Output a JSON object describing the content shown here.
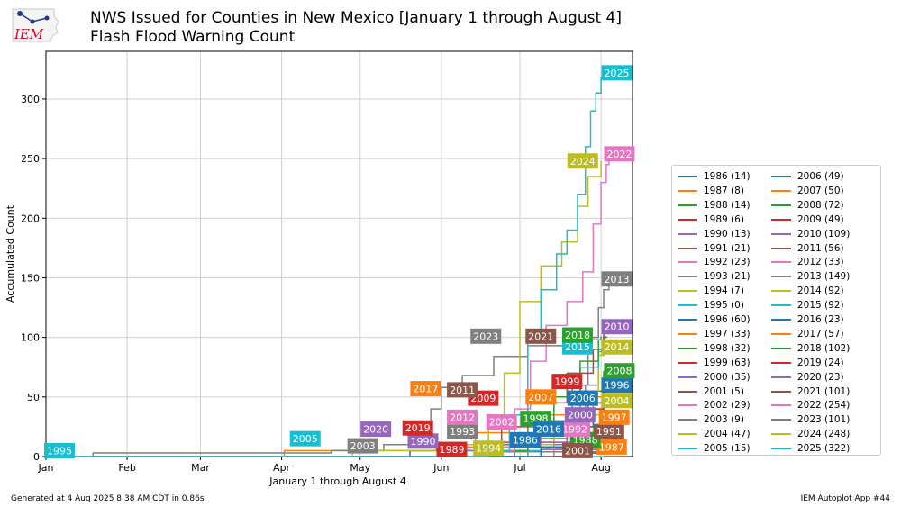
{
  "header": {
    "title_line1": "NWS Issued for Counties in New Mexico [January 1 through August 4]",
    "title_line2": "Flash Flood Warning Count",
    "logo_text": "IEM"
  },
  "footer": {
    "generated": "Generated at 4 Aug 2025 8:38 AM CDT in 0.86s",
    "app": "IEM Autoplot App #44"
  },
  "chart_data": {
    "type": "line",
    "title": "NWS Issued for Counties in New Mexico [January 1 through August 4] Flash Flood Warning Count",
    "xlabel": "January 1 through August 4",
    "ylabel": "Accumulated Count",
    "xlim": [
      1,
      225
    ],
    "ylim": [
      0,
      340
    ],
    "x_ticks": [
      {
        "day": 1,
        "label": "Jan"
      },
      {
        "day": 32,
        "label": "Feb"
      },
      {
        "day": 60,
        "label": "Mar"
      },
      {
        "day": 91,
        "label": "Apr"
      },
      {
        "day": 121,
        "label": "May"
      },
      {
        "day": 152,
        "label": "Jun"
      },
      {
        "day": 182,
        "label": "Jul"
      },
      {
        "day": 213,
        "label": "Aug"
      }
    ],
    "y_ticks": [
      0,
      50,
      100,
      150,
      200,
      250,
      300
    ],
    "grid": true,
    "legend_location": "right",
    "series": [
      {
        "year": "1986",
        "total": 14,
        "color": "#1f77b4",
        "label_day": 184,
        "label_y": 14
      },
      {
        "year": "1987",
        "total": 8,
        "color": "#ff7f0e",
        "label_day": 217,
        "label_y": 8
      },
      {
        "year": "1988",
        "total": 14,
        "color": "#2ca02c",
        "label_day": 207,
        "label_y": 14
      },
      {
        "year": "1989",
        "total": 6,
        "color": "#d62728",
        "label_day": 156,
        "label_y": 6
      },
      {
        "year": "1990",
        "total": 13,
        "color": "#9467bd",
        "label_day": 145,
        "label_y": 13
      },
      {
        "year": "1991",
        "total": 21,
        "color": "#8c564b",
        "label_day": 216,
        "label_y": 21
      },
      {
        "year": "1992",
        "total": 23,
        "color": "#e377c2",
        "label_day": 203,
        "label_y": 23
      },
      {
        "year": "1993",
        "total": 21,
        "color": "#7f7f7f",
        "label_day": 160,
        "label_y": 21
      },
      {
        "year": "1994",
        "total": 7,
        "color": "#bcbd22",
        "label_day": 170,
        "label_y": 7
      },
      {
        "year": "1995",
        "total": 0,
        "color": "#17becf",
        "label_day": 6,
        "label_y": 0
      },
      {
        "year": "1996",
        "total": 60,
        "color": "#1f77b4",
        "label_day": 219,
        "label_y": 60
      },
      {
        "year": "1997",
        "total": 33,
        "color": "#ff7f0e",
        "label_day": 218,
        "label_y": 33
      },
      {
        "year": "1998",
        "total": 32,
        "color": "#2ca02c",
        "label_day": 188,
        "label_y": 32
      },
      {
        "year": "1999",
        "total": 63,
        "color": "#d62728",
        "label_day": 200,
        "label_y": 63
      },
      {
        "year": "2000",
        "total": 35,
        "color": "#9467bd",
        "label_day": 205,
        "label_y": 35
      },
      {
        "year": "2001",
        "total": 5,
        "color": "#8c564b",
        "label_day": 204,
        "label_y": 5
      },
      {
        "year": "2002",
        "total": 29,
        "color": "#e377c2",
        "label_day": 175,
        "label_y": 29
      },
      {
        "year": "2003",
        "total": 9,
        "color": "#7f7f7f",
        "label_day": 122,
        "label_y": 9
      },
      {
        "year": "2004",
        "total": 47,
        "color": "#bcbd22",
        "label_day": 219,
        "label_y": 47
      },
      {
        "year": "2005",
        "total": 15,
        "color": "#17becf",
        "label_day": 100,
        "label_y": 15
      },
      {
        "year": "2006",
        "total": 49,
        "color": "#1f77b4",
        "label_day": 206,
        "label_y": 49
      },
      {
        "year": "2007",
        "total": 50,
        "color": "#ff7f0e",
        "label_day": 190,
        "label_y": 50
      },
      {
        "year": "2008",
        "total": 72,
        "color": "#2ca02c",
        "label_day": 220,
        "label_y": 72
      },
      {
        "year": "2009",
        "total": 49,
        "color": "#d62728",
        "label_day": 168,
        "label_y": 49
      },
      {
        "year": "2010",
        "total": 109,
        "color": "#9467bd",
        "label_day": 219,
        "label_y": 109
      },
      {
        "year": "2011",
        "total": 56,
        "color": "#8c564b",
        "label_day": 160,
        "label_y": 56
      },
      {
        "year": "2012",
        "total": 33,
        "color": "#e377c2",
        "label_day": 160,
        "label_y": 33
      },
      {
        "year": "2013",
        "total": 149,
        "color": "#7f7f7f",
        "label_day": 219,
        "label_y": 149
      },
      {
        "year": "2014",
        "total": 92,
        "color": "#bcbd22",
        "label_day": 219,
        "label_y": 92
      },
      {
        "year": "2015",
        "total": 92,
        "color": "#17becf",
        "label_day": 204,
        "label_y": 92
      },
      {
        "year": "2016",
        "total": 23,
        "color": "#1f77b4",
        "label_day": 193,
        "label_y": 23
      },
      {
        "year": "2017",
        "total": 57,
        "color": "#ff7f0e",
        "label_day": 146,
        "label_y": 57
      },
      {
        "year": "2018",
        "total": 102,
        "color": "#2ca02c",
        "label_day": 204,
        "label_y": 102
      },
      {
        "year": "2019",
        "total": 24,
        "color": "#d62728",
        "label_day": 143,
        "label_y": 24
      },
      {
        "year": "2020",
        "total": 23,
        "color": "#9467bd",
        "label_day": 127,
        "label_y": 23
      },
      {
        "year": "2021",
        "total": 101,
        "color": "#8c564b",
        "label_day": 190,
        "label_y": 101
      },
      {
        "year": "2022",
        "total": 254,
        "color": "#e377c2",
        "label_day": 220,
        "label_y": 254
      },
      {
        "year": "2023",
        "total": 101,
        "color": "#7f7f7f",
        "label_day": 169,
        "label_y": 101
      },
      {
        "year": "2024",
        "total": 248,
        "color": "#bcbd22",
        "label_day": 206,
        "label_y": 248
      },
      {
        "year": "2025",
        "total": 322,
        "color": "#17becf",
        "label_day": 219,
        "label_y": 322
      }
    ],
    "curves": {
      "2025": [
        [
          1,
          0
        ],
        [
          150,
          0
        ],
        [
          170,
          5
        ],
        [
          178,
          35
        ],
        [
          185,
          100
        ],
        [
          190,
          140
        ],
        [
          196,
          170
        ],
        [
          200,
          190
        ],
        [
          204,
          220
        ],
        [
          207,
          260
        ],
        [
          209,
          290
        ],
        [
          211,
          305
        ],
        [
          213,
          318
        ],
        [
          215,
          322
        ]
      ],
      "2024": [
        [
          1,
          0
        ],
        [
          100,
          0
        ],
        [
          118,
          5
        ],
        [
          160,
          10
        ],
        [
          170,
          35
        ],
        [
          176,
          70
        ],
        [
          182,
          130
        ],
        [
          190,
          160
        ],
        [
          198,
          180
        ],
        [
          204,
          210
        ],
        [
          208,
          235
        ],
        [
          213,
          248
        ]
      ],
      "2022": [
        [
          1,
          0
        ],
        [
          150,
          0
        ],
        [
          170,
          5
        ],
        [
          180,
          40
        ],
        [
          186,
          80
        ],
        [
          192,
          110
        ],
        [
          200,
          130
        ],
        [
          206,
          155
        ],
        [
          210,
          195
        ],
        [
          213,
          230
        ],
        [
          215,
          245
        ],
        [
          216,
          254
        ]
      ],
      "2013": [
        [
          1,
          0
        ],
        [
          170,
          0
        ],
        [
          185,
          10
        ],
        [
          195,
          30
        ],
        [
          202,
          60
        ],
        [
          208,
          100
        ],
        [
          212,
          125
        ],
        [
          214,
          140
        ],
        [
          216,
          149
        ]
      ],
      "2023": [
        [
          1,
          0
        ],
        [
          18,
          0
        ],
        [
          19,
          3
        ],
        [
          100,
          3
        ],
        [
          110,
          5
        ],
        [
          130,
          10
        ],
        [
          148,
          40
        ],
        [
          152,
          58
        ],
        [
          160,
          68
        ],
        [
          172,
          84
        ],
        [
          185,
          93
        ],
        [
          200,
          98
        ],
        [
          213,
          101
        ]
      ],
      "2021": [
        [
          1,
          0
        ],
        [
          150,
          0
        ],
        [
          165,
          5
        ],
        [
          175,
          25
        ],
        [
          185,
          45
        ],
        [
          200,
          70
        ],
        [
          210,
          90
        ],
        [
          214,
          100
        ],
        [
          215,
          101
        ]
      ],
      "2010": [
        [
          1,
          0
        ],
        [
          170,
          0
        ],
        [
          190,
          10
        ],
        [
          200,
          30
        ],
        [
          207,
          60
        ],
        [
          212,
          90
        ],
        [
          214,
          105
        ],
        [
          215,
          109
        ]
      ],
      "2018": [
        [
          1,
          0
        ],
        [
          160,
          0
        ],
        [
          175,
          5
        ],
        [
          185,
          30
        ],
        [
          195,
          50
        ],
        [
          205,
          80
        ],
        [
          212,
          98
        ],
        [
          214,
          102
        ]
      ],
      "2014": [
        [
          1,
          0
        ],
        [
          170,
          0
        ],
        [
          185,
          10
        ],
        [
          195,
          25
        ],
        [
          205,
          55
        ],
        [
          212,
          85
        ],
        [
          214,
          92
        ]
      ],
      "2015": [
        [
          1,
          0
        ],
        [
          170,
          0
        ],
        [
          185,
          20
        ],
        [
          195,
          50
        ],
        [
          205,
          75
        ],
        [
          212,
          88
        ],
        [
          214,
          92
        ]
      ],
      "2008": [
        [
          1,
          0
        ],
        [
          175,
          0
        ],
        [
          190,
          15
        ],
        [
          200,
          35
        ],
        [
          208,
          55
        ],
        [
          214,
          72
        ]
      ],
      "1999": [
        [
          1,
          0
        ],
        [
          175,
          0
        ],
        [
          190,
          15
        ],
        [
          200,
          35
        ],
        [
          208,
          50
        ],
        [
          214,
          63
        ]
      ],
      "1996": [
        [
          1,
          0
        ],
        [
          175,
          0
        ],
        [
          190,
          10
        ],
        [
          200,
          25
        ],
        [
          208,
          45
        ],
        [
          214,
          60
        ]
      ],
      "2017": [
        [
          1,
          0
        ],
        [
          90,
          0
        ],
        [
          92,
          5
        ],
        [
          150,
          8
        ],
        [
          165,
          20
        ],
        [
          185,
          35
        ],
        [
          205,
          50
        ],
        [
          214,
          57
        ]
      ],
      "2011": [
        [
          1,
          0
        ],
        [
          150,
          0
        ],
        [
          165,
          10
        ],
        [
          185,
          25
        ],
        [
          205,
          45
        ],
        [
          214,
          56
        ]
      ],
      "2007": [
        [
          1,
          0
        ],
        [
          170,
          0
        ],
        [
          185,
          15
        ],
        [
          200,
          30
        ],
        [
          210,
          45
        ],
        [
          214,
          50
        ]
      ],
      "2006": [
        [
          1,
          0
        ],
        [
          175,
          0
        ],
        [
          190,
          10
        ],
        [
          200,
          25
        ],
        [
          210,
          40
        ],
        [
          214,
          49
        ]
      ],
      "2009": [
        [
          1,
          0
        ],
        [
          160,
          0
        ],
        [
          175,
          10
        ],
        [
          190,
          25
        ],
        [
          205,
          40
        ],
        [
          214,
          49
        ]
      ],
      "2004": [
        [
          1,
          0
        ],
        [
          175,
          0
        ],
        [
          190,
          10
        ],
        [
          200,
          20
        ],
        [
          210,
          35
        ],
        [
          214,
          47
        ]
      ],
      "2000": [
        [
          1,
          0
        ],
        [
          175,
          0
        ],
        [
          190,
          10
        ],
        [
          205,
          25
        ],
        [
          214,
          35
        ]
      ],
      "1997": [
        [
          1,
          0
        ],
        [
          175,
          0
        ],
        [
          190,
          8
        ],
        [
          205,
          20
        ],
        [
          214,
          33
        ]
      ],
      "2012": [
        [
          1,
          0
        ],
        [
          155,
          0
        ],
        [
          170,
          8
        ],
        [
          190,
          20
        ],
        [
          214,
          33
        ]
      ],
      "1998": [
        [
          1,
          0
        ],
        [
          160,
          0
        ],
        [
          175,
          8
        ],
        [
          195,
          20
        ],
        [
          214,
          32
        ]
      ],
      "2002": [
        [
          1,
          0
        ],
        [
          160,
          0
        ],
        [
          175,
          8
        ],
        [
          195,
          18
        ],
        [
          214,
          29
        ]
      ],
      "2019": [
        [
          1,
          0
        ],
        [
          120,
          0
        ],
        [
          140,
          5
        ],
        [
          170,
          12
        ],
        [
          214,
          24
        ]
      ],
      "2020": [
        [
          1,
          0
        ],
        [
          120,
          0
        ],
        [
          140,
          5
        ],
        [
          180,
          12
        ],
        [
          214,
          23
        ]
      ],
      "2016": [
        [
          1,
          0
        ],
        [
          170,
          0
        ],
        [
          190,
          8
        ],
        [
          214,
          23
        ]
      ],
      "1992": [
        [
          1,
          0
        ],
        [
          170,
          0
        ],
        [
          195,
          8
        ],
        [
          214,
          23
        ]
      ],
      "1991": [
        [
          1,
          0
        ],
        [
          170,
          0
        ],
        [
          195,
          8
        ],
        [
          214,
          21
        ]
      ],
      "1993": [
        [
          1,
          0
        ],
        [
          150,
          0
        ],
        [
          180,
          8
        ],
        [
          214,
          21
        ]
      ],
      "2005": [
        [
          1,
          0
        ],
        [
          100,
          0
        ],
        [
          140,
          5
        ],
        [
          190,
          10
        ],
        [
          214,
          15
        ]
      ],
      "1986": [
        [
          1,
          0
        ],
        [
          160,
          0
        ],
        [
          190,
          6
        ],
        [
          214,
          14
        ]
      ],
      "1988": [
        [
          1,
          0
        ],
        [
          170,
          0
        ],
        [
          195,
          6
        ],
        [
          214,
          14
        ]
      ],
      "1990": [
        [
          1,
          0
        ],
        [
          150,
          0
        ],
        [
          190,
          6
        ],
        [
          214,
          13
        ]
      ],
      "2003": [
        [
          1,
          0
        ],
        [
          120,
          0
        ],
        [
          170,
          4
        ],
        [
          214,
          9
        ]
      ],
      "1987": [
        [
          1,
          0
        ],
        [
          180,
          0
        ],
        [
          205,
          4
        ],
        [
          214,
          8
        ]
      ],
      "1994": [
        [
          1,
          0
        ],
        [
          180,
          0
        ],
        [
          205,
          3
        ],
        [
          214,
          7
        ]
      ],
      "1989": [
        [
          1,
          0
        ],
        [
          180,
          0
        ],
        [
          205,
          3
        ],
        [
          214,
          6
        ]
      ],
      "2001": [
        [
          1,
          0
        ],
        [
          180,
          0
        ],
        [
          205,
          3
        ],
        [
          214,
          5
        ]
      ],
      "1995": [
        [
          1,
          0
        ],
        [
          214,
          0
        ]
      ]
    }
  }
}
